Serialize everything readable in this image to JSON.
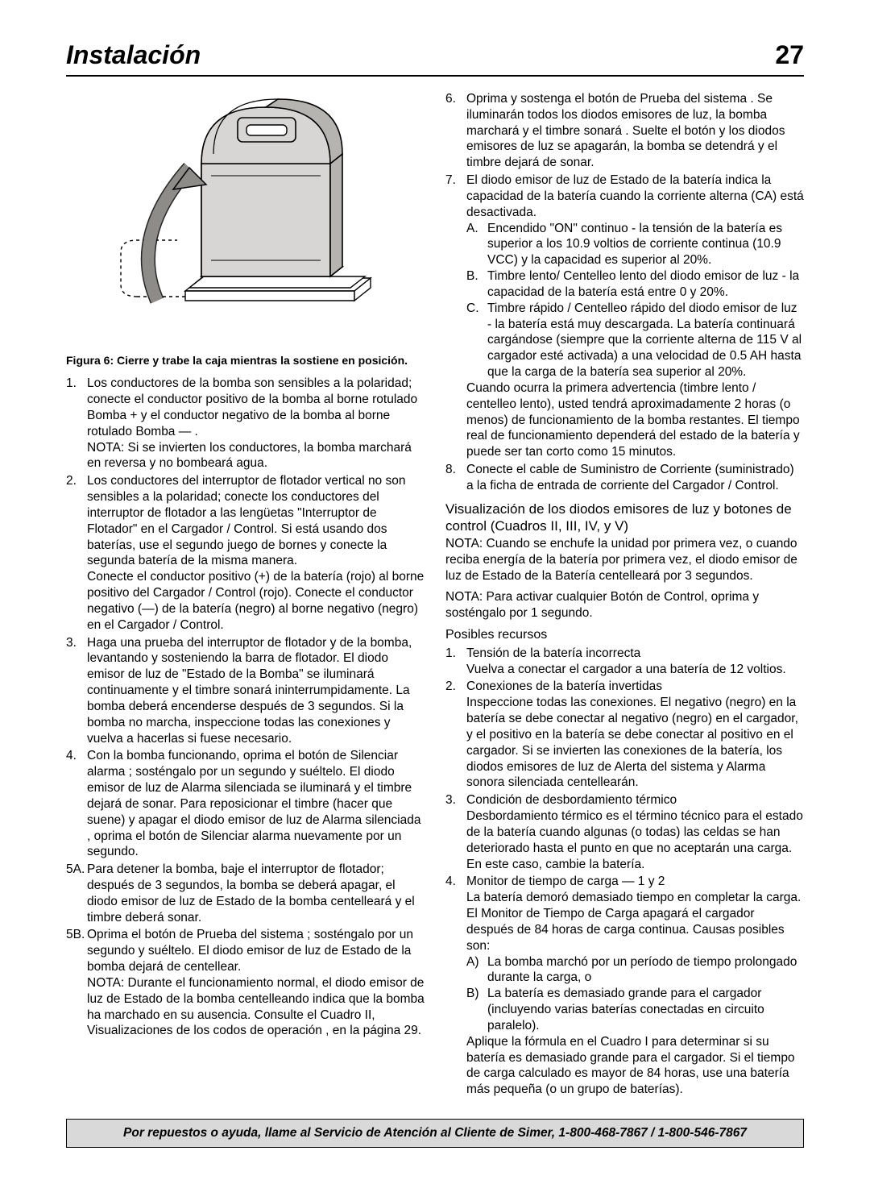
{
  "header": {
    "title": "Instalación",
    "pageno": "27"
  },
  "figure": {
    "caption": "Figura 6: Cierre y trabe la caja mientras la sostiene en posición.",
    "colors": {
      "box_fill": "#d7d6d4",
      "box_shadow": "#b5b4b1",
      "stroke": "#000000",
      "arrow_fill": "#8e8c88"
    }
  },
  "left": {
    "items": [
      {
        "n": "1.",
        "t": "Los conductores de la bomba son sensibles a la polaridad; conecte el conductor positivo de la bomba al borne rotulado Bomba + y el conductor negativo de la bomba al borne rotulado Bomba — .\nNOTA: Si se invierten los conductores, la bomba marchará en reversa y no bombeará agua."
      },
      {
        "n": "2.",
        "t": "Los conductores del interruptor de flotador vertical no son sensibles a la polaridad; conecte los conductores del interruptor de flotador a las lengüetas \"Interruptor de Flotador\" en el Cargador / Control. Si está usando dos baterías, use el segundo juego de bornes y conecte la segunda batería de la misma manera.\nConecte el conductor positivo (+) de la batería (rojo) al borne positivo del Cargador / Control (rojo). Conecte el conductor negativo (—) de la batería (negro) al borne negativo (negro) en el Cargador / Control."
      },
      {
        "n": "3.",
        "t": "Haga una prueba del interruptor de flotador y de la bomba, levantando y sosteniendo la barra de flotador. El diodo emisor de luz de \"Estado de la Bomba\" se iluminará continuamente y el timbre sonará ininterrumpidamente. La bomba deberá encenderse después de 3 segundos. Si la bomba no marcha, inspeccione todas las conexiones y vuelva a hacerlas si fuese necesario."
      },
      {
        "n": "4.",
        "t": "Con la bomba funcionando, oprima el botón de Silenciar alarma ; sosténgalo por un segundo y suéltelo. El diodo emisor de luz de Alarma silenciada se iluminará y el timbre dejará de sonar. Para reposicionar el timbre (hacer que suene) y apagar el diodo emisor de luz de Alarma silenciada , oprima el botón de Silenciar alarma nuevamente por un segundo."
      },
      {
        "n": "5A.",
        "t": "Para detener la bomba, baje el interruptor de flotador; después de 3 segundos, la bomba se deberá apagar, el diodo emisor de luz de Estado de la bomba centelleará y el timbre deberá sonar."
      },
      {
        "n": "5B.",
        "t": "Oprima el botón de Prueba del sistema ; sosténgalo por un segundo y suéltelo. El diodo emisor de luz de Estado de la bomba dejará de centellear.\nNOTA: Durante el funcionamiento normal, el diodo emisor de luz de Estado de la bomba centelleando indica que la bomba ha marchado en su ausencia. Consulte el Cuadro II, Visualizaciones de los codos de operación , en la página 29."
      }
    ]
  },
  "right": {
    "cont": [
      {
        "n": "6.",
        "t": "Oprima y sostenga el botón de Prueba del sistema . Se iluminarán todos los diodos emisores de luz, la bomba marchará y el timbre sonará . Suelte el botón y los diodos emisores de luz se apagarán, la bomba se detendrá y el timbre dejará de sonar."
      },
      {
        "n": "7.",
        "t": "El diodo emisor de luz de Estado de la batería indica la capacidad de la batería cuando la corriente alterna (CA) está desactivada.",
        "sub": [
          {
            "n": "A.",
            "t": "Encendido \"ON\" continuo - la tensión de la batería es superior a los 10.9 voltios de corriente continua (10.9 VCC) y la capacidad es superior al 20%."
          },
          {
            "n": "B.",
            "t": "Timbre lento/ Centelleo lento del diodo emisor de luz - la capacidad de la batería está entre 0 y 20%."
          },
          {
            "n": "C.",
            "t": "Timbre rápido / Centelleo rápido del diodo emisor de luz - la batería está muy descargada. La batería continuará cargándose (siempre que la corriente alterna de 115 V al cargador esté activada) a una velocidad de 0.5 AH hasta que la carga de la batería sea superior al 20%."
          }
        ],
        "after": "Cuando ocurra la primera advertencia (timbre lento / centelleo lento), usted tendrá aproximadamente 2 horas (o menos) de funcionamiento de la bomba restantes. El tiempo real de funcionamiento dependerá del estado de la batería y puede ser tan corto como 15 minutos."
      },
      {
        "n": "8.",
        "t": "Conecte el cable de Suministro de Corriente (suministrado) a la ficha de entrada de corriente del Cargador / Control."
      }
    ],
    "section_h": "Visualización de los diodos emisores de luz y botones de control (Cuadros II, III, IV, y V)",
    "note1": "NOTA: Cuando se enchufe la unidad por primera vez, o cuando reciba energía de la batería por primera vez, el diodo emisor de luz de Estado de la Batería centelleará por 3 segundos.",
    "note2": "NOTA: Para activar cualquier Botón de Control, oprima y sosténgalo por 1 segundo.",
    "sub_h": "Posibles recursos",
    "resources": [
      {
        "n": "1.",
        "t": "Tensión de la batería incorrecta\nVuelva a conectar el cargador a una batería de 12 voltios."
      },
      {
        "n": "2.",
        "t": "Conexiones de la batería invertidas\nInspeccione todas las conexiones. El negativo (negro) en la batería se debe conectar al negativo (negro) en el cargador, y el positivo en la batería se debe conectar al positivo en el cargador. Si se invierten las conexiones de la batería, los diodos emisores de luz de Alerta del sistema y Alarma sonora silenciada centellearán."
      },
      {
        "n": "3.",
        "t": "Condición de desbordamiento térmico\nDesbordamiento térmico es el término técnico para el estado de la batería cuando algunas (o todas) las celdas se han deteriorado hasta el punto en que no aceptarán una carga. En este caso, cambie la batería."
      },
      {
        "n": "4.",
        "t": "Monitor de tiempo de carga — 1 y 2\nLa batería demoró demasiado tiempo en completar la carga. El Monitor de Tiempo de Carga apagará el cargador después de 84 horas de carga continua. Causas posibles son:",
        "sub": [
          {
            "n": "A)",
            "t": "La bomba marchó por un período de tiempo prolongado durante la carga, o"
          },
          {
            "n": "B)",
            "t": "La batería es demasiado grande para el cargador (incluyendo varias baterías conectadas en circuito paralelo)."
          }
        ],
        "after": "Aplique la fórmula en el Cuadro I para determinar si su batería es demasiado grande para el cargador. Si el tiempo de carga calculado es mayor de 84 horas, use una batería más pequeña (o un grupo de baterías)."
      }
    ]
  },
  "footer": "Por repuestos o ayuda, llame al Servicio de Atención al Cliente de Simer, 1-800-468-7867 / 1-800-546-7867"
}
